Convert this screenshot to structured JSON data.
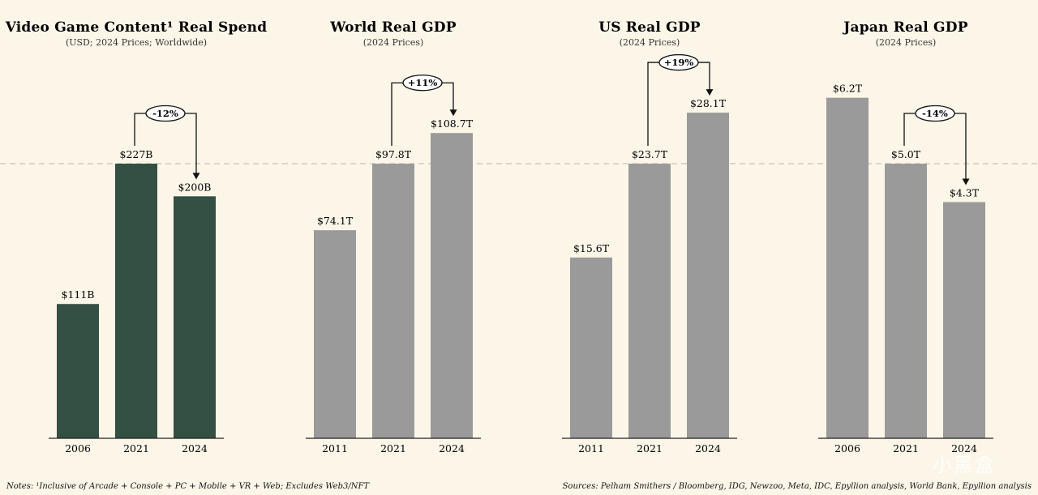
{
  "colors": {
    "game_bar": "#344f43",
    "gdp_bar": "#9a9a9a",
    "reference_line": "#c8c4b8"
  },
  "chart_data": [
    {
      "type": "bar",
      "title": "Video Game Content¹ Real Spend",
      "subtitle": "(USD; 2024 Prices; Worldwide)",
      "categories": [
        "2006",
        "2021",
        "2024"
      ],
      "values": [
        111,
        227,
        200
      ],
      "value_labels": [
        "$111B",
        "$227B",
        "$200B"
      ],
      "ylim": [
        0,
        227
      ],
      "change": {
        "from_index": 1,
        "to_index": 2,
        "label": "-12%"
      },
      "color_key": "game_bar"
    },
    {
      "type": "bar",
      "title": "World Real GDP",
      "subtitle": "(2024 Prices)",
      "categories": [
        "2011",
        "2021",
        "2024"
      ],
      "values": [
        74.1,
        97.8,
        108.7
      ],
      "value_labels": [
        "$74.1T",
        "$97.8T",
        "$108.7T"
      ],
      "ylim": [
        0,
        97.8
      ],
      "change": {
        "from_index": 1,
        "to_index": 2,
        "label": "+11%"
      },
      "color_key": "gdp_bar"
    },
    {
      "type": "bar",
      "title": "US Real GDP",
      "subtitle": "(2024 Prices)",
      "categories": [
        "2011",
        "2021",
        "2024"
      ],
      "values": [
        15.6,
        23.7,
        28.1
      ],
      "value_labels": [
        "$15.6T",
        "$23.7T",
        "$28.1T"
      ],
      "ylim": [
        0,
        23.7
      ],
      "change": {
        "from_index": 1,
        "to_index": 2,
        "label": "+19%"
      },
      "color_key": "gdp_bar"
    },
    {
      "type": "bar",
      "title": "Japan Real GDP",
      "subtitle": "(2024 Prices)",
      "categories": [
        "2006",
        "2021",
        "2024"
      ],
      "values": [
        6.2,
        5.0,
        4.3
      ],
      "value_labels": [
        "$6.2T",
        "$5.0T",
        "$4.3T"
      ],
      "ylim": [
        0,
        5.0
      ],
      "change": {
        "from_index": 1,
        "to_index": 2,
        "label": "-14%"
      },
      "color_key": "gdp_bar"
    }
  ],
  "footer": {
    "notes": "Notes: ¹Inclusive of Arcade + Console + PC + Mobile + VR + Web; Excludes Web3/NFT",
    "sources": "Sources: Pelham Smithers / Bloomberg, IDG, Newzoo, Meta, IDC, Epyllion analysis, World Bank, Epyllion analysis"
  },
  "watermark": "小黑盒"
}
